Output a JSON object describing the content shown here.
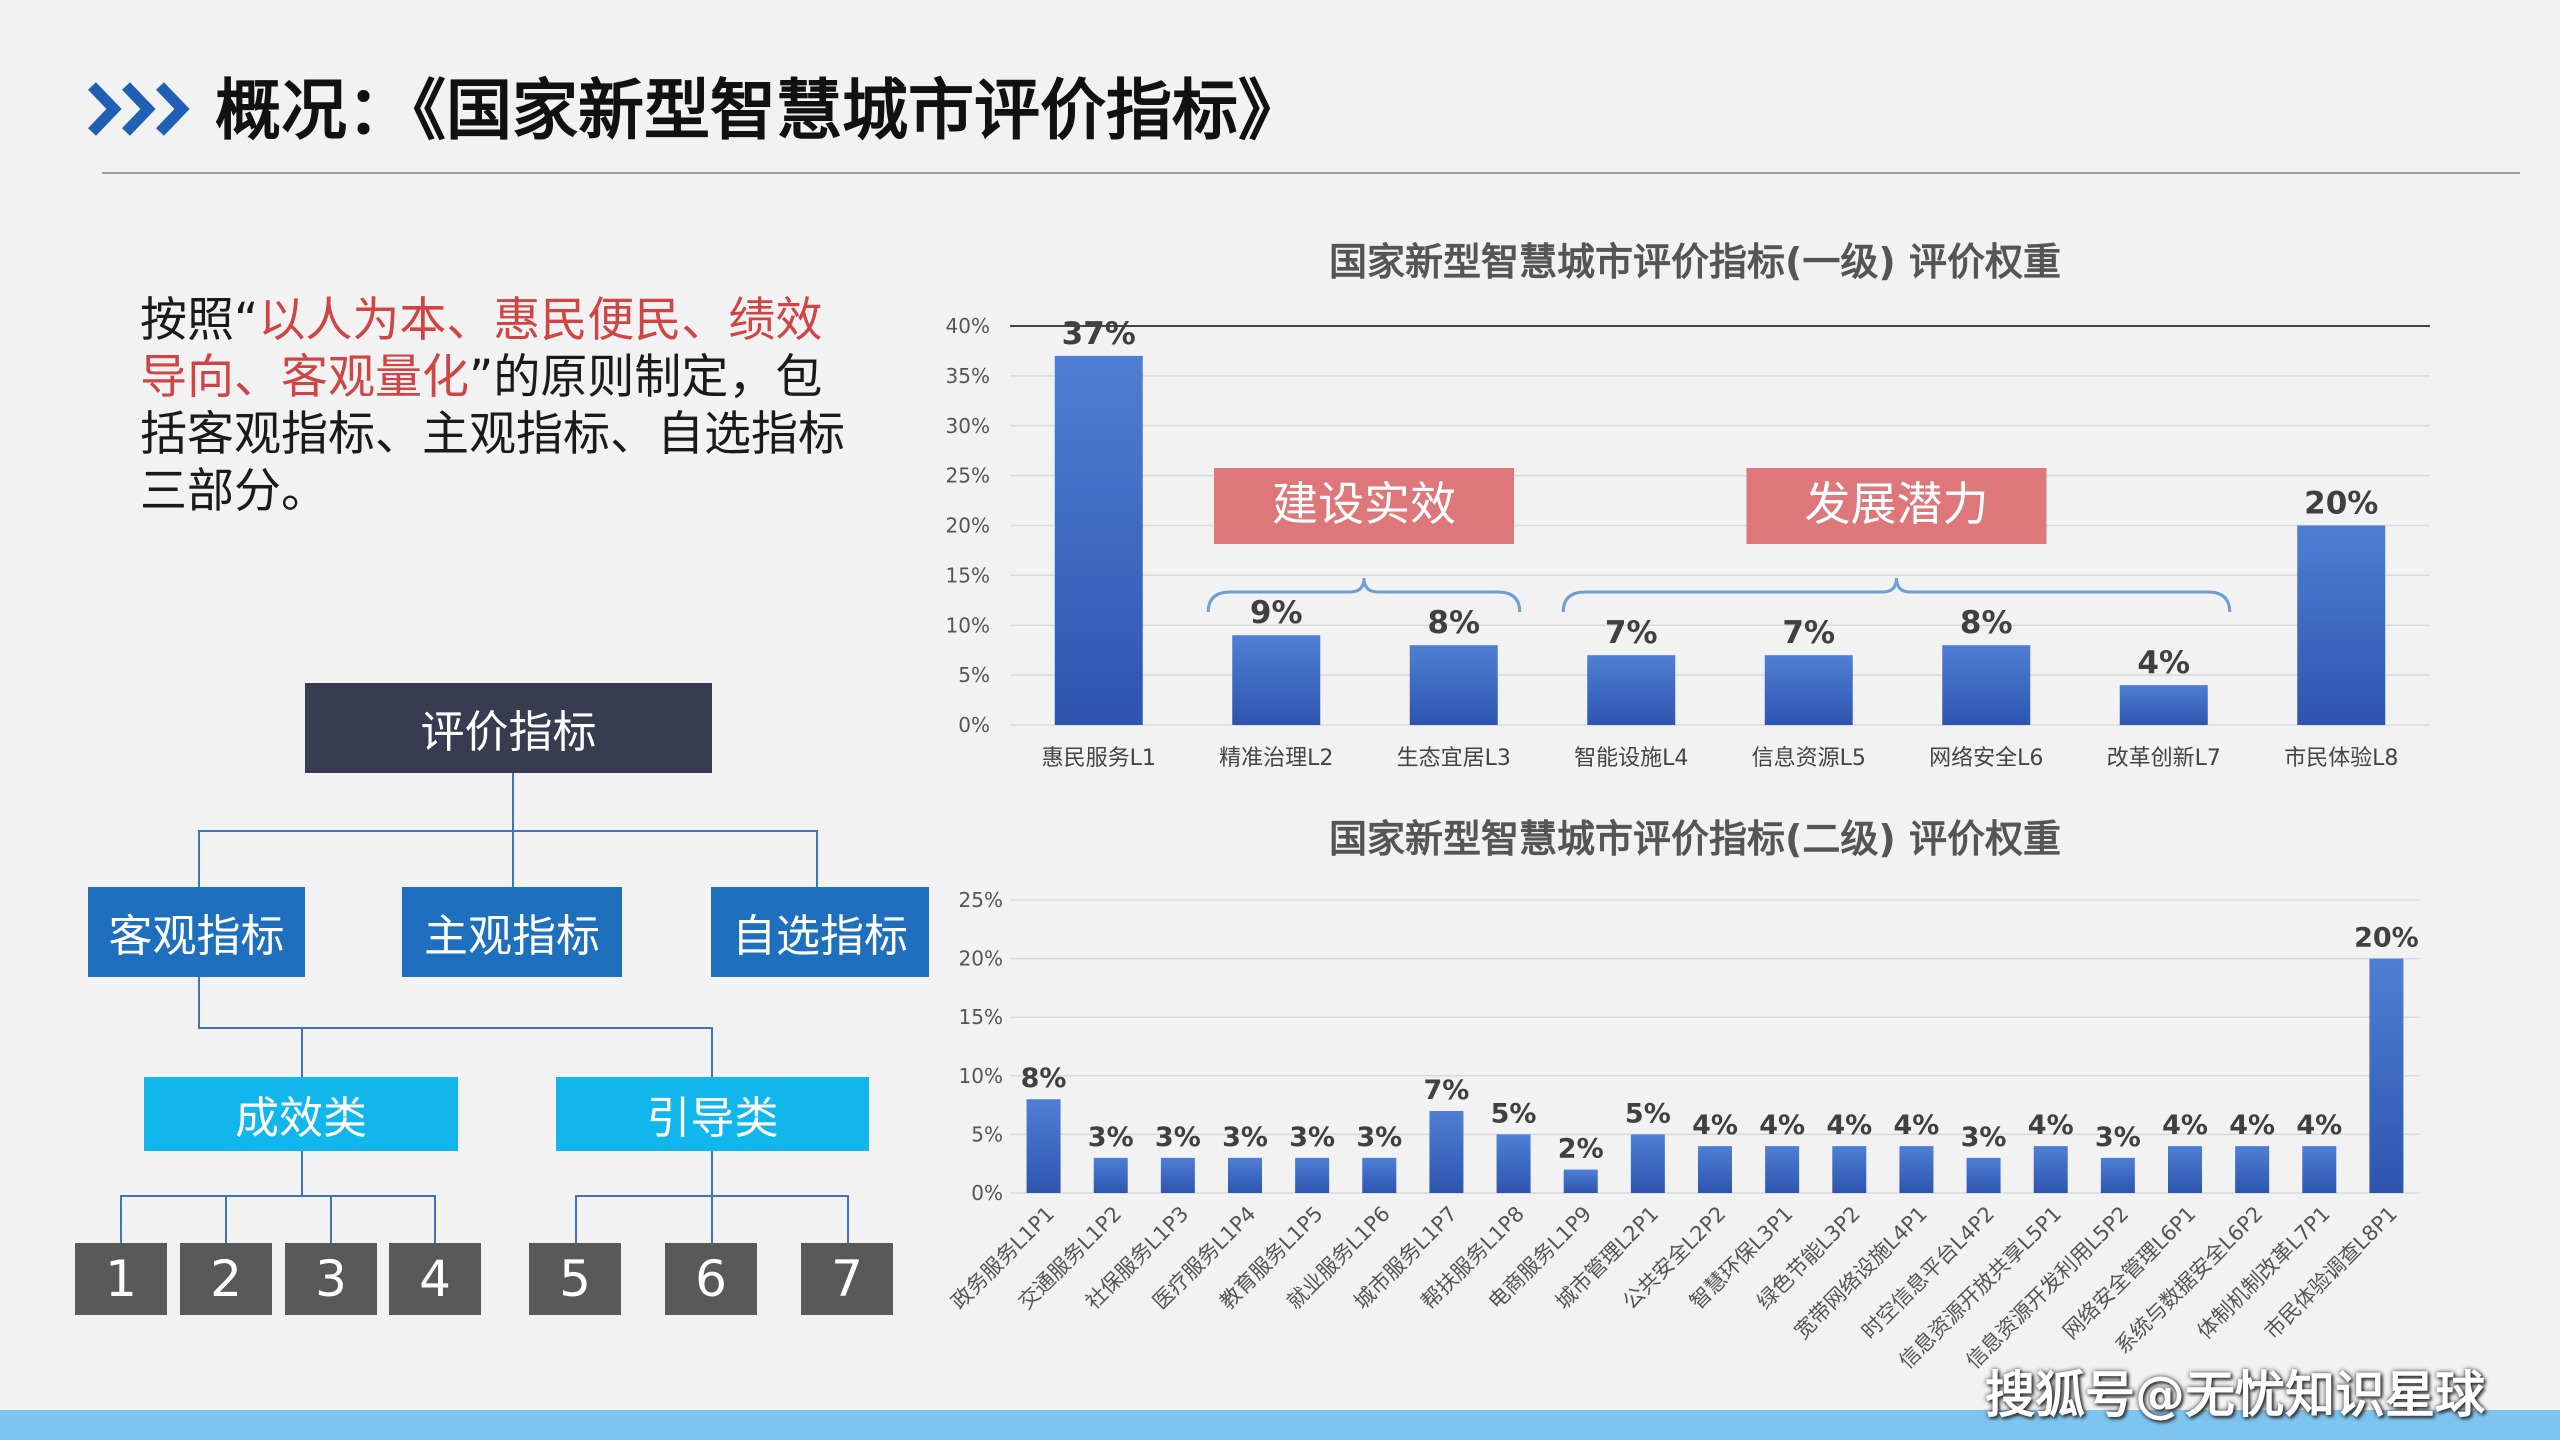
{
  "page": {
    "title": "概况：《国家新型智慧城市评价指标》"
  },
  "intro": {
    "prefix": "按照“",
    "highlight": "以人为本、惠民便民、绩效导向、客观量化",
    "suffix": "”的原则制定，包括客观指标、主观指标、自选指标三部分。"
  },
  "tree": {
    "root": "评价指标",
    "level1": [
      "客观指标",
      "主观指标",
      "自选指标"
    ],
    "level2": [
      "成效类",
      "引导类"
    ],
    "leaves": [
      "1",
      "2",
      "3",
      "4",
      "5",
      "6",
      "7"
    ]
  },
  "colors": {
    "bar": "#3a6bc4",
    "group_label_bg": "#de7779",
    "brace": "#6f9fd2"
  },
  "chart_data": [
    {
      "type": "bar",
      "title": "国家新型智慧城市评价指标(一级) 评价权重",
      "categories": [
        "惠民服务L1",
        "精准治理L2",
        "生态宜居L3",
        "智能设施L4",
        "信息资源L5",
        "网络安全L6",
        "改革创新L7",
        "市民体验L8"
      ],
      "values": [
        37,
        9,
        8,
        7,
        7,
        8,
        4,
        20
      ],
      "value_labels": [
        "37%",
        "9%",
        "8%",
        "7%",
        "7%",
        "8%",
        "4%",
        "20%"
      ],
      "ylim": [
        0,
        40
      ],
      "yticks": [
        "0%",
        "5%",
        "10%",
        "15%",
        "20%",
        "25%",
        "30%",
        "35%",
        "40%"
      ],
      "grid": true,
      "annotations": [
        {
          "label": "建设实效",
          "from": 1,
          "to": 2
        },
        {
          "label": "发展潜力",
          "from": 3,
          "to": 6
        }
      ]
    },
    {
      "type": "bar",
      "title": "国家新型智慧城市评价指标(二级) 评价权重",
      "categories": [
        "政务服务L1P1",
        "交通服务L1P2",
        "社保服务L1P3",
        "医疗服务L1P4",
        "教育服务L1P5",
        "就业服务L1P6",
        "城市服务L1P7",
        "帮扶服务L1P8",
        "电商服务L1P9",
        "城市管理L2P1",
        "公共安全L2P2",
        "智慧环保L3P1",
        "绿色节能L3P2",
        "宽带网络设施L4P1",
        "时空信息平台L4P2",
        "信息资源开放共享L5P1",
        "信息资源开发利用L5P2",
        "网络安全管理L6P1",
        "系统与数据安全L6P2",
        "体制机制改革L7P1",
        "市民体验调查L8P1"
      ],
      "values": [
        8,
        3,
        3,
        3,
        3,
        3,
        7,
        5,
        2,
        5,
        4,
        4,
        4,
        4,
        3,
        4,
        3,
        4,
        4,
        4,
        20
      ],
      "value_labels": [
        "8%",
        "3%",
        "3%",
        "3%",
        "3%",
        "3%",
        "7%",
        "5%",
        "2%",
        "5%",
        "4%",
        "4%",
        "4%",
        "4%",
        "3%",
        "4%",
        "3%",
        "4%",
        "4%",
        "4%",
        "20%"
      ],
      "ylim": [
        0,
        25
      ],
      "yticks": [
        "0%",
        "5%",
        "10%",
        "15%",
        "20%",
        "25%"
      ],
      "grid": true
    }
  ],
  "watermark": "搜狐号@无忧知识星球"
}
